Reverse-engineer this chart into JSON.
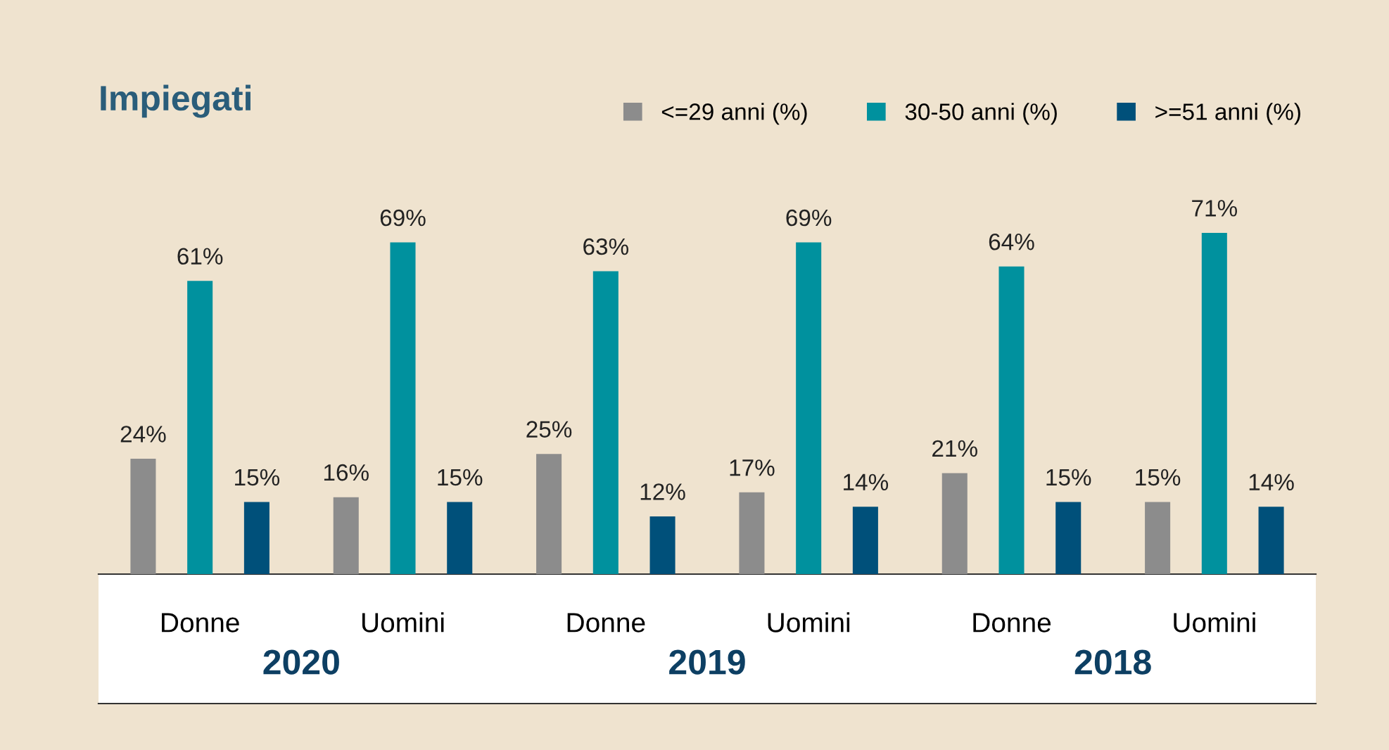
{
  "chart_data": {
    "type": "bar",
    "title": "Impiegati",
    "categories": [
      "Donne",
      "Uomini",
      "Donne",
      "Uomini",
      "Donne",
      "Uomini"
    ],
    "annotations": [
      "2020",
      "2019",
      "2018"
    ],
    "series": [
      {
        "name": "<=29 anni (%)",
        "color": "#8c8c8c",
        "values": [
          24,
          16,
          25,
          17,
          21,
          15
        ],
        "value_labels": [
          "24%",
          "16%",
          "25%",
          "17%",
          "21%",
          "15%"
        ]
      },
      {
        "name": "30-50 anni (%)",
        "color": "#00919e",
        "values": [
          61,
          69,
          63,
          69,
          64,
          71
        ],
        "value_labels": [
          "61%",
          "69%",
          "63%",
          "69%",
          "64%",
          "71%"
        ]
      },
      {
        "name": ">=51 anni (%)",
        "color": "#00507a",
        "values": [
          15,
          15,
          12,
          14,
          15,
          14
        ],
        "value_labels": [
          "15%",
          "15%",
          "12%",
          "14%",
          "15%",
          "14%"
        ]
      }
    ],
    "grid": false,
    "legend": "top right"
  }
}
